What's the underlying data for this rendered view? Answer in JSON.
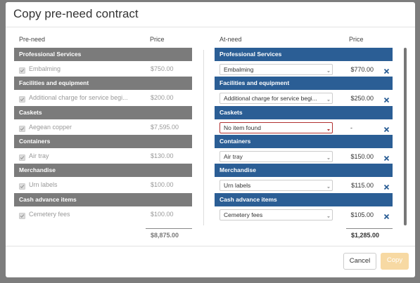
{
  "title": "Copy pre-need contract",
  "left": {
    "headers": [
      "Pre-need",
      "Price"
    ],
    "sections": [
      {
        "name": "Professional Services",
        "item": "Embalming",
        "price": "$750.00"
      },
      {
        "name": "Facilities and equipment",
        "item": "Additional charge for service begi...",
        "price": "$200.00"
      },
      {
        "name": "Caskets",
        "item": "Aegean copper",
        "price": "$7,595.00"
      },
      {
        "name": "Containers",
        "item": "Air tray",
        "price": "$130.00"
      },
      {
        "name": "Merchandise",
        "item": "Urn labels",
        "price": "$100.00"
      },
      {
        "name": "Cash advance items",
        "item": "Cemetery fees",
        "price": "$100.00"
      }
    ],
    "total": "$8,875.00"
  },
  "right": {
    "headers": [
      "At-need",
      "Price"
    ],
    "sections": [
      {
        "name": "Professional Services",
        "item": "Embalming",
        "price": "$770.00"
      },
      {
        "name": "Facilities and equipment",
        "item": "Additional charge for service begi...",
        "price": "$250.00"
      },
      {
        "name": "Caskets",
        "item": "No item found",
        "price": "-"
      },
      {
        "name": "Containers",
        "item": "Air tray",
        "price": "$150.00"
      },
      {
        "name": "Merchandise",
        "item": "Urn labels",
        "price": "$115.00"
      },
      {
        "name": "Cash advance items",
        "item": "Cemetery fees",
        "price": "$105.00"
      }
    ],
    "total": "$1,285.00"
  },
  "buttons": {
    "cancel": "Cancel",
    "copy": "Copy"
  }
}
